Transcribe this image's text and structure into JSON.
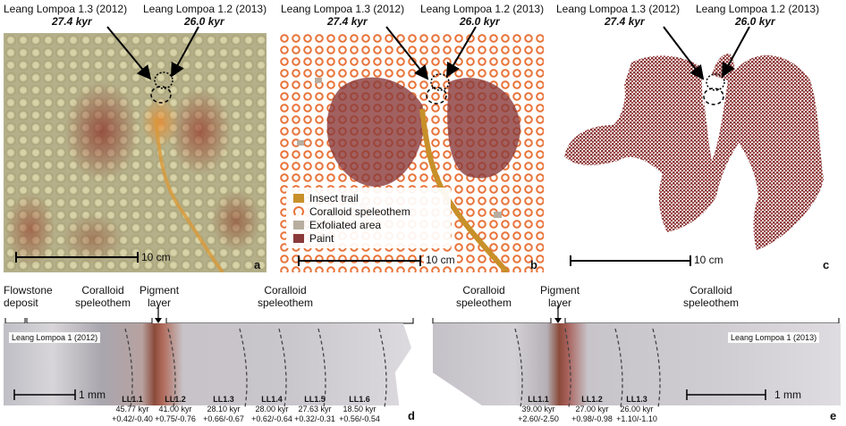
{
  "panels": {
    "a": {
      "letter": "a",
      "header_left": "Leang Lompoa 1.3 (2012)",
      "age_left": "27.4 kyr",
      "header_right": "Leang Lompoa 1.2 (2013)",
      "age_right": "26.0 kyr",
      "scale": "10 cm"
    },
    "b": {
      "letter": "b",
      "header_left": "Leang Lompoa 1.3 (2012)",
      "age_left": "27.4 kyr",
      "header_right": "Leang Lompoa 1.2 (2013)",
      "age_right": "26.0 kyr",
      "scale": "10 cm",
      "legend": [
        {
          "label": "Insect trail",
          "color": "#c8902a"
        },
        {
          "label": "Coralloid speleothem",
          "color": "#e8743a"
        },
        {
          "label": "Exfoliated area",
          "color": "#b8aea0"
        },
        {
          "label": "Paint",
          "color": "#8a3a3a"
        }
      ]
    },
    "c": {
      "letter": "c",
      "header_left": "Leang Lompoa 1.3 (2012)",
      "age_left": "27.4 kyr",
      "header_right": "Leang Lompoa 1.2 (2013)",
      "age_right": "26.0 kyr",
      "scale": "10 cm"
    },
    "d": {
      "letter": "d",
      "flowstone_line1": "Flowstone",
      "flowstone_line2": "deposit",
      "coralloid_left_line1": "Coralloid",
      "coralloid_left_line2": "speleothem",
      "pigment_line1": "Pigment",
      "pigment_line2": "layer",
      "coralloid_right_line1": "Coralloid",
      "coralloid_right_line2": "speleothem",
      "sample_tag": "Leang Lompoa 1 (2012)",
      "scale": "1 mm",
      "samples": [
        {
          "id": "LL1.1",
          "age": "45.77 kyr",
          "err": "+0.42/-0.40"
        },
        {
          "id": "LL1.2",
          "age": "41.00 kyr",
          "err": "+0.75/-0.76"
        },
        {
          "id": "LL1.3",
          "age": "28.10 kyr",
          "err": "+0.66/-0.67"
        },
        {
          "id": "LL1.4",
          "age": "28.00 kyr",
          "err": "+0.62/-0.64"
        },
        {
          "id": "LL1.5",
          "age": "27.63 kyr",
          "err": "+0.32/-0.31"
        },
        {
          "id": "LL1.6",
          "age": "18.50 kyr",
          "err": "+0.56/-0.54"
        }
      ]
    },
    "e": {
      "letter": "e",
      "coralloid_left_line1": "Coralloid",
      "coralloid_left_line2": "speleothem",
      "pigment_line1": "Pigment",
      "pigment_line2": "layer",
      "coralloid_right_line1": "Coralloid",
      "coralloid_right_line2": "speleothem",
      "sample_tag": "Leang Lompoa 1 (2013)",
      "scale": "1 mm",
      "samples": [
        {
          "id": "LL1.1",
          "age": "39.00 kyr",
          "err": "+2.60/-2.50"
        },
        {
          "id": "LL1.2",
          "age": "27.00 kyr",
          "err": "+0.98/-0.98"
        },
        {
          "id": "LL1.3",
          "age": "26.00 kyr",
          "err": "+1.10/-1.10"
        }
      ]
    }
  }
}
